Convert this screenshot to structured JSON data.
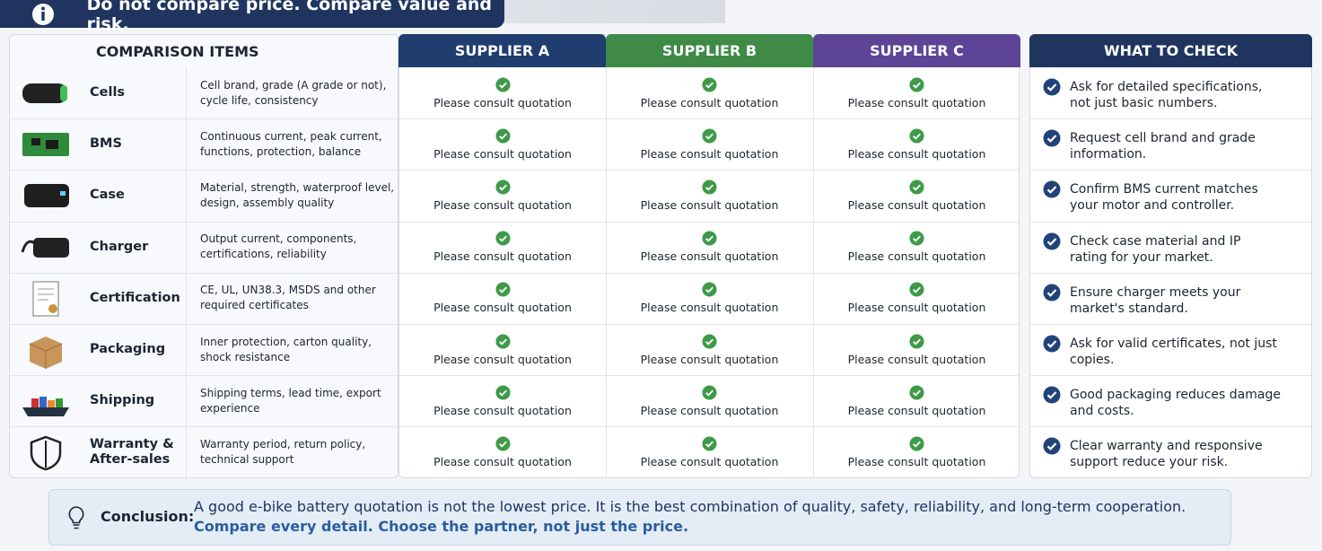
{
  "banner": "Do not compare price. Compare value and risk.",
  "header": {
    "items": "COMPARISON ITEMS",
    "suppliers": [
      "SUPPLIER A",
      "SUPPLIER B",
      "SUPPLIER C"
    ],
    "check": "WHAT TO CHECK"
  },
  "rows": [
    {
      "name": "Cells",
      "description": "Cell brand, grade (A grade or not), cycle life, consistency",
      "suppliers": [
        "Please consult quotation",
        "Please consult quotation",
        "Please consult quotation"
      ],
      "check": "Ask for detailed specifications, not just basic numbers."
    },
    {
      "name": "BMS",
      "description": "Continuous current, peak current, functions, protection, balance",
      "suppliers": [
        "Please consult quotation",
        "Please consult quotation",
        "Please consult quotation"
      ],
      "check": "Request cell brand and grade information."
    },
    {
      "name": "Case",
      "description": "Material, strength, waterproof level, design, assembly quality",
      "suppliers": [
        "Please consult quotation",
        "Please consult quotation",
        "Please consult quotation"
      ],
      "check": "Confirm BMS current matches your motor and controller."
    },
    {
      "name": "Charger",
      "description": "Output current, components, certifications, reliability",
      "suppliers": [
        "Please consult quotation",
        "Please consult quotation",
        "Please consult quotation"
      ],
      "check": "Check case material and IP rating for your market."
    },
    {
      "name": "Certification",
      "description": "CE, UL, UN38.3, MSDS and other required certificates",
      "suppliers": [
        "Please consult quotation",
        "Please consult quotation",
        "Please consult quotation"
      ],
      "check": "Ensure charger meets your market's standard."
    },
    {
      "name": "Packaging",
      "description": "Inner protection, carton quality, shock resistance",
      "suppliers": [
        "Please consult quotation",
        "Please consult quotation",
        "Please consult quotation"
      ],
      "check": "Ask for valid certificates, not just copies."
    },
    {
      "name": "Shipping",
      "description": "Shipping terms, lead time, export experience",
      "suppliers": [
        "Please consult quotation",
        "Please consult quotation",
        "Please consult quotation"
      ],
      "check": "Good packaging reduces damage and costs."
    },
    {
      "name": "Warranty & After-sales",
      "description": "Warranty period, return policy, technical support",
      "suppliers": [
        "Please consult quotation",
        "Please consult quotation",
        "Please consult quotation"
      ],
      "check": "Clear warranty and responsive support reduce your risk."
    }
  ],
  "conclusion": {
    "label": "Conclusion:",
    "text": "A good e-bike battery quotation is not the lowest price. It is the best combination of quality, safety, reliability, and long-term cooperation.",
    "emphasis": "Compare every detail. Choose the partner, not just the price."
  }
}
